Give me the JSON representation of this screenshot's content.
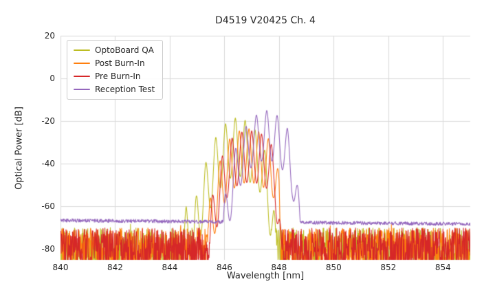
{
  "chart_data": {
    "type": "line",
    "title": "D4519 V20425 Ch. 4",
    "xlabel": "Wavelength [nm]",
    "ylabel": "Optical Power [dB]",
    "xlim": [
      840,
      855
    ],
    "ylim": [
      -85,
      20
    ],
    "xticks": [
      840,
      842,
      844,
      846,
      848,
      850,
      852,
      854
    ],
    "yticks": [
      20,
      0,
      -20,
      -40,
      -60,
      -80
    ],
    "grid": true,
    "legend_position": "upper left",
    "series": [
      {
        "name": "OptoBoard QA",
        "color": "#bcbd22",
        "noise": {
          "type": "band",
          "min": -90,
          "max": -70
        },
        "envelope": [
          [
            844.25,
            -76
          ],
          [
            844.6,
            -60
          ],
          [
            844.85,
            -66
          ],
          [
            845.0,
            -52
          ],
          [
            845.3,
            -40
          ],
          [
            845.7,
            -27
          ],
          [
            846.05,
            -21
          ],
          [
            846.4,
            -18.5
          ],
          [
            846.75,
            -19.5
          ],
          [
            847.05,
            -23
          ],
          [
            847.35,
            -27
          ],
          [
            847.6,
            -40
          ],
          [
            847.8,
            -58
          ],
          [
            847.95,
            -80
          ]
        ],
        "mode_spacing_nm": 0.36,
        "mode_phase_nm": 846.4,
        "mode_depth_db": 27
      },
      {
        "name": "Post Burn-In",
        "color": "#ff7f0e",
        "noise": {
          "type": "band",
          "min": -90,
          "max": -70
        },
        "envelope": [
          [
            845.15,
            -78
          ],
          [
            845.5,
            -55
          ],
          [
            845.85,
            -38
          ],
          [
            846.2,
            -28
          ],
          [
            846.55,
            -24.5
          ],
          [
            846.9,
            -23.5
          ],
          [
            847.2,
            -24.5
          ],
          [
            847.5,
            -26.5
          ],
          [
            847.8,
            -31
          ],
          [
            848.0,
            -45
          ],
          [
            848.1,
            -80
          ]
        ],
        "mode_spacing_nm": 0.355,
        "mode_phase_nm": 846.9,
        "mode_depth_db": 25
      },
      {
        "name": "Pre Burn-In",
        "color": "#d62728",
        "noise": {
          "type": "band",
          "min": -90,
          "max": -70
        },
        "envelope": [
          [
            845.25,
            -80
          ],
          [
            845.6,
            -52
          ],
          [
            845.95,
            -35
          ],
          [
            846.3,
            -27.5
          ],
          [
            846.65,
            -25
          ],
          [
            847.0,
            -24.5
          ],
          [
            847.3,
            -25.5
          ],
          [
            847.6,
            -28
          ],
          [
            847.85,
            -34
          ],
          [
            848.0,
            -55
          ],
          [
            848.12,
            -82
          ]
        ],
        "mode_spacing_nm": 0.36,
        "mode_phase_nm": 847.0,
        "mode_depth_db": 24
      },
      {
        "name": "Reception Test",
        "color": "#9467bd",
        "noise": {
          "type": "flat",
          "start": -66.5,
          "end": -68.2,
          "jitter": 0.8
        },
        "envelope": [
          [
            845.85,
            -66
          ],
          [
            846.1,
            -50
          ],
          [
            846.4,
            -33
          ],
          [
            846.7,
            -24
          ],
          [
            847.0,
            -18.5
          ],
          [
            847.3,
            -16
          ],
          [
            847.55,
            -15
          ],
          [
            847.8,
            -16
          ],
          [
            848.05,
            -18.5
          ],
          [
            848.3,
            -23
          ],
          [
            848.5,
            -33
          ],
          [
            848.7,
            -52
          ],
          [
            848.9,
            -66
          ]
        ],
        "mode_spacing_nm": 0.38,
        "mode_phase_nm": 847.55,
        "mode_depth_db": 23
      }
    ]
  }
}
